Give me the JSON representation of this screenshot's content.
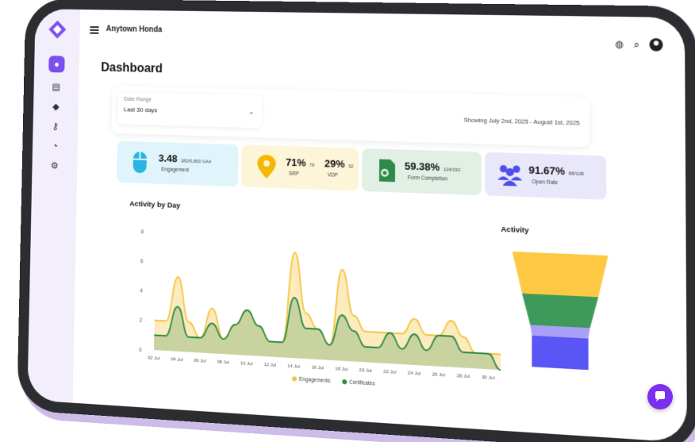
{
  "header": {
    "dealer_name": "Anytown Honda"
  },
  "page": {
    "title": "Dashboard"
  },
  "filter": {
    "date_range_label": "Date Range",
    "date_range_value": "Last 30 days",
    "showing_text": "Showing July 2nd, 2025 - August 1st, 2025"
  },
  "kpis": [
    {
      "value": "3.48",
      "sub": "182/5,803 GA4",
      "label": "Engagement",
      "icon": "mouse-icon"
    },
    {
      "value": "71%",
      "sub": "70",
      "label": "SRP",
      "value2": "29%",
      "sub2": "32",
      "label2": "VDP",
      "icon": "location-pin-icon"
    },
    {
      "value": "59.38%",
      "sub": "114/192",
      "label": "Form Completion",
      "icon": "form-completion-icon"
    },
    {
      "value": "91.67%",
      "sub": "88/108",
      "label": "Open Rate",
      "icon": "users-icon"
    }
  ],
  "colors": {
    "accent": "#7b4ff0",
    "engagements": "#f5c542",
    "certificates": "#2e8b4a",
    "funnel": [
      "#fdc844",
      "#3d9a5a",
      "#a99ff7",
      "#5a55f5"
    ]
  },
  "chart_data": [
    {
      "type": "area",
      "title": "Activity by Day",
      "ylim": [
        0,
        8
      ],
      "y_ticks": [
        "8",
        "6",
        "4",
        "2",
        "0"
      ],
      "categories": [
        "02 Jul",
        "03 Jul",
        "04 Jul",
        "05 Jul",
        "06 Jul",
        "07 Jul",
        "08 Jul",
        "09 Jul",
        "10 Jul",
        "11 Jul",
        "12 Jul",
        "13 Jul",
        "14 Jul",
        "15 Jul",
        "16 Jul",
        "17 Jul",
        "18 Jul",
        "19 Jul",
        "20 Jul",
        "21 Jul",
        "22 Jul",
        "23 Jul",
        "24 Jul",
        "25 Jul",
        "26 Jul",
        "27 Jul",
        "28 Jul",
        "29 Jul",
        "30 Jul",
        "31 Jul"
      ],
      "x_tick_labels": [
        "02 Jul",
        "04 Jul",
        "06 Jul",
        "08 Jul",
        "10 Jul",
        "12 Jul",
        "14 Jul",
        "16 Jul",
        "18 Jul",
        "20 Jul",
        "22 Jul",
        "24 Jul",
        "26 Jul",
        "28 Jul",
        "30 Jul"
      ],
      "series": [
        {
          "name": "Engagements",
          "values": [
            2,
            2,
            5,
            2,
            1,
            3,
            1,
            2,
            3,
            2,
            1,
            1,
            7,
            3,
            2,
            1,
            6,
            3,
            2,
            2,
            2,
            2,
            3,
            2,
            2,
            3,
            2,
            1,
            1,
            1
          ]
        },
        {
          "name": "Certificates",
          "values": [
            1,
            1,
            3,
            1,
            1,
            2,
            1,
            2,
            3,
            2,
            1,
            1,
            4,
            2,
            2,
            1,
            3,
            2,
            1,
            1,
            2,
            1,
            2,
            1,
            2,
            2,
            1,
            1,
            1,
            0
          ]
        }
      ],
      "legend_position": "bottom"
    },
    {
      "type": "funnel",
      "title": "Activity",
      "values": [
        4,
        3,
        1,
        3
      ]
    }
  ]
}
